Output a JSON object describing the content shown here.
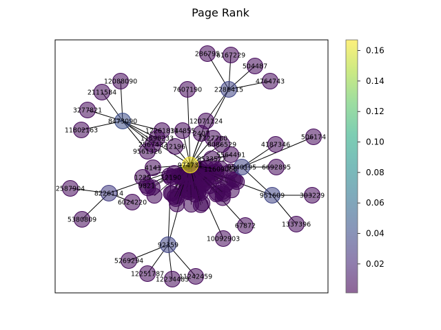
{
  "title": "Page Rank",
  "colorbar": {
    "min": 0.001,
    "max": 0.167,
    "colormap": "viridis",
    "ticks": [
      "0.02",
      "0.04",
      "0.06",
      "0.08",
      "0.10",
      "0.12",
      "0.14",
      "0.16"
    ],
    "tick_values": [
      0.02,
      0.04,
      0.06,
      0.08,
      0.1,
      0.12,
      0.14,
      0.16
    ]
  },
  "nodes": [
    {
      "id": "hub",
      "label": "974731",
      "rank": 0.165
    },
    {
      "id": "n8473090",
      "label": "8473090",
      "rank": 0.04
    },
    {
      "id": "n2286415",
      "label": "2286415",
      "rank": 0.035
    },
    {
      "id": "n8226114",
      "label": "8226114",
      "rank": 0.03
    },
    {
      "id": "n92359",
      "label": "92359",
      "rank": 0.035
    },
    {
      "id": "n951609",
      "label": "951609",
      "rank": 0.035
    },
    {
      "id": "n9540195",
      "label": "9540195",
      "rank": 0.035
    },
    {
      "id": "n12088090",
      "label": "12088090",
      "rank": 0.005
    },
    {
      "id": "n2111584",
      "label": "2111584",
      "rank": 0.005
    },
    {
      "id": "n3277821",
      "label": "3277821",
      "rank": 0.005
    },
    {
      "id": "n11802163",
      "label": "11802163",
      "rank": 0.005
    },
    {
      "id": "n286795",
      "label": "286795",
      "rank": 0.005
    },
    {
      "id": "n6167229",
      "label": "6167229",
      "rank": 0.005
    },
    {
      "id": "n504487",
      "label": "504487",
      "rank": 0.005
    },
    {
      "id": "n4764743",
      "label": "4764743",
      "rank": 0.005
    },
    {
      "id": "n7607190",
      "label": "7607190",
      "rank": 0.005
    },
    {
      "id": "n12071124",
      "label": "12071124",
      "rank": 0.005
    },
    {
      "id": "n506174",
      "label": "506174",
      "rank": 0.005
    },
    {
      "id": "n4187346",
      "label": "4187346",
      "rank": 0.005
    },
    {
      "id": "n6692895",
      "label": "6692895",
      "rank": 0.005
    },
    {
      "id": "n303229",
      "label": "303229",
      "rank": 0.005
    },
    {
      "id": "n1337396",
      "label": "1337396",
      "rank": 0.005
    },
    {
      "id": "n67872",
      "label": "67872",
      "rank": 0.005
    },
    {
      "id": "n10092903",
      "label": "10092903",
      "rank": 0.005
    },
    {
      "id": "n2587904",
      "label": "2587904",
      "rank": 0.005
    },
    {
      "id": "n5380809",
      "label": "5380809",
      "rank": 0.005
    },
    {
      "id": "n6024220",
      "label": "6024220",
      "rank": 0.005
    },
    {
      "id": "n5269294",
      "label": "5269294",
      "rank": 0.005
    },
    {
      "id": "n12251787",
      "label": "12251787",
      "rank": 0.005
    },
    {
      "id": "n12234483",
      "label": "12234483",
      "rank": 0.005
    },
    {
      "id": "n11242459",
      "label": "11242459",
      "rank": 0.005
    },
    {
      "id": "n12261834",
      "label": "12261834",
      "rank": 0.005
    },
    {
      "id": "n11598233",
      "label": "11598233",
      "rank": 0.005
    },
    {
      "id": "n2567432",
      "label": "2567432",
      "rank": 0.005
    },
    {
      "id": "n9561326",
      "label": "9561326",
      "rank": 0.005
    },
    {
      "id": "n7727780",
      "label": "7727780",
      "rank": 0.005
    },
    {
      "id": "n8086529",
      "label": "8086529",
      "rank": 0.005
    },
    {
      "id": "n5564491",
      "label": "5564491",
      "rank": 0.005
    },
    {
      "id": "n8533522",
      "label": "8533522",
      "rank": 0.005
    },
    {
      "id": "n11609066",
      "label": "11609066",
      "rank": 0.005
    },
    {
      "id": "n12196",
      "label": "12196",
      "rank": 0.005
    },
    {
      "id": "n114855",
      "label": "114855",
      "rank": 0.005
    },
    {
      "id": "n2407",
      "label": "2407",
      "rank": 0.005
    },
    {
      "id": "n1225",
      "label": "1225",
      "rank": 0.005
    },
    {
      "id": "n4141",
      "label": "4141",
      "rank": 0.005
    },
    {
      "id": "n9821",
      "label": "9821",
      "rank": 0.005
    },
    {
      "id": "n12190",
      "label": "12190",
      "rank": 0.005
    }
  ]
}
